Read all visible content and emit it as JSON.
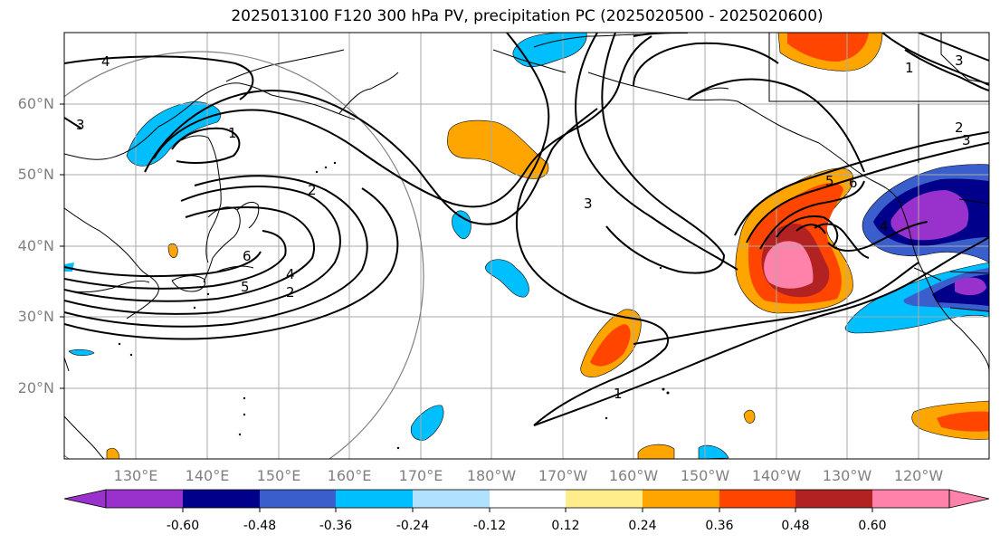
{
  "title": "2025013100 F120 300 hPa PV, precipitation PC (2025020500 - 2025020600)",
  "lat_labels": [
    "60°N",
    "50°N",
    "40°N",
    "30°N",
    "20°N"
  ],
  "lon_labels": [
    "130°E",
    "140°E",
    "150°E",
    "160°E",
    "170°E",
    "180°W",
    "170°W",
    "160°W",
    "150°W",
    "140°W",
    "130°W",
    "120°W"
  ],
  "colorbar": {
    "colors": [
      "#9932cc",
      "#00008b",
      "#3a5fcd",
      "#00bfff",
      "#b0e2ff",
      "#ffffff",
      "#ffec8b",
      "#ffa500",
      "#ff4500",
      "#b22222",
      "#ff82ab"
    ],
    "tick_labels": [
      "-0.60",
      "-0.48",
      "-0.36",
      "-0.24",
      "-0.12",
      "0.12",
      "0.24",
      "0.36",
      "0.48",
      "0.60"
    ]
  },
  "contour_labels": [
    "4",
    "1",
    "2",
    "3",
    "6",
    "5",
    "4",
    "2",
    "3",
    "2",
    "3",
    "5",
    "6",
    "4",
    "1",
    "3",
    "1"
  ]
}
